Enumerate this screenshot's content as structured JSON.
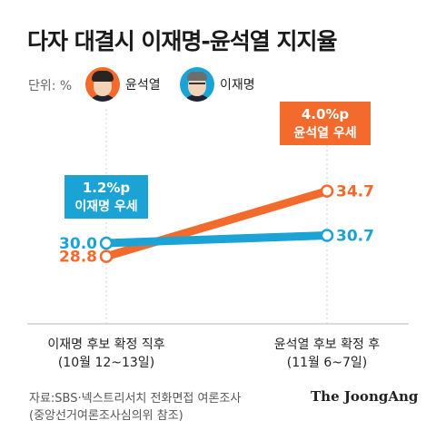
{
  "header": {
    "title": "다자 대결시 이재명-윤석열 지지율",
    "unit": "단위: %"
  },
  "legend": [
    {
      "name": "윤석열",
      "color": "#f26a2c",
      "icon": "yoon-portrait-icon"
    },
    {
      "name": "이재명",
      "color": "#1aa3d4",
      "icon": "lee-portrait-icon"
    }
  ],
  "chart_data": {
    "type": "line",
    "title": "다자 대결시 이재명-윤석열 지지율",
    "xlabel": "",
    "ylabel": "",
    "grid": false,
    "categories": [
      [
        "이재명 후보 확정 직후",
        "(10월 12~13일)"
      ],
      [
        "윤석열 후보 확정 후",
        "(11월 6~7일)"
      ]
    ],
    "series": [
      {
        "name": "윤석열",
        "color": "#f26a2c",
        "values": [
          28.8,
          34.7
        ],
        "labels": [
          "28.8",
          "34.7"
        ]
      },
      {
        "name": "이재명",
        "color": "#1aa3d4",
        "values": [
          30.0,
          30.7
        ],
        "labels": [
          "30.0",
          "30.7"
        ]
      }
    ],
    "annotations": [
      {
        "lines": [
          "1.2%p",
          "이재명 우세"
        ],
        "color": "#1aa3d4",
        "category": 0
      },
      {
        "lines": [
          "4.0%p",
          "윤석열 우세"
        ],
        "color": "#f26a2c",
        "category": 1
      }
    ]
  },
  "footer": {
    "source_line1": "자료:SBS·넥스트리서치 전화면접 여론조사",
    "source_line2": "(중앙선거여론조사심의위 참조)",
    "brand": "The JoongAng"
  }
}
